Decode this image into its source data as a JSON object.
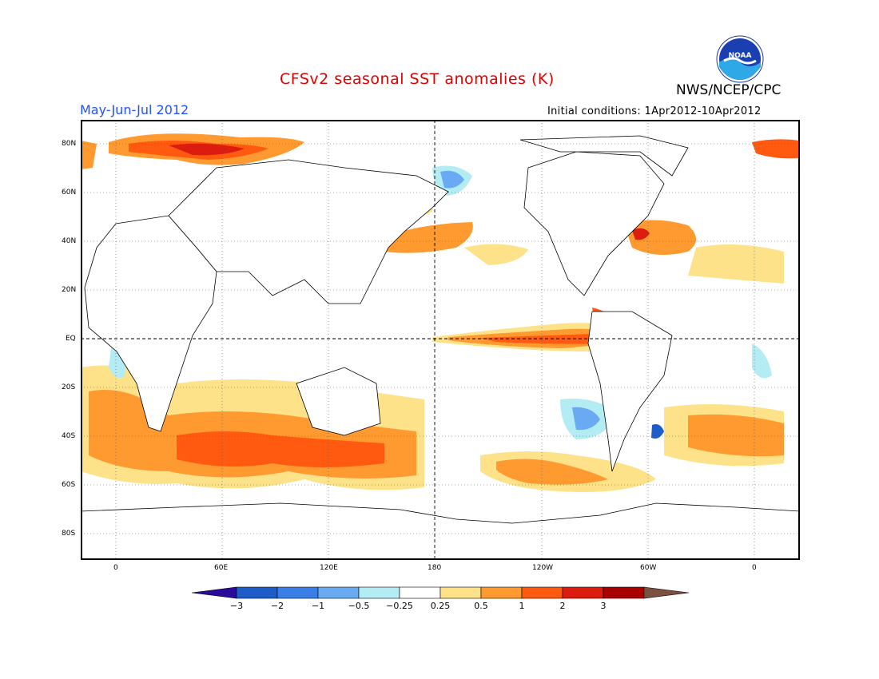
{
  "title": "CFSv2 seasonal SST anomalies (K)",
  "organization": "NWS/NCEP/CPC",
  "period": "May-Jun-Jul 2012",
  "initial_conditions": "Initial conditions: 1Apr2012-10Apr2012",
  "logo_text": "NOAA",
  "map": {
    "lat_labels": [
      "80N",
      "60N",
      "40N",
      "20N",
      "EQ",
      "20S",
      "40S",
      "60S",
      "80S"
    ],
    "lon_labels": [
      "0",
      "60E",
      "120E",
      "180",
      "120W",
      "60W",
      "0"
    ]
  },
  "colorbar": {
    "ticks": [
      "-3",
      "-2",
      "-1",
      "-0.5",
      "-0.25",
      "0.25",
      "0.5",
      "1",
      "2",
      "3"
    ],
    "colors": [
      "#2a0a9a",
      "#1e5cc8",
      "#3a7fe6",
      "#6aaaf2",
      "#b4ecf4",
      "#ffffff",
      "#fde28a",
      "#ff9a30",
      "#ff5a10",
      "#dd1c10",
      "#a80000",
      "#7a5040"
    ]
  }
}
